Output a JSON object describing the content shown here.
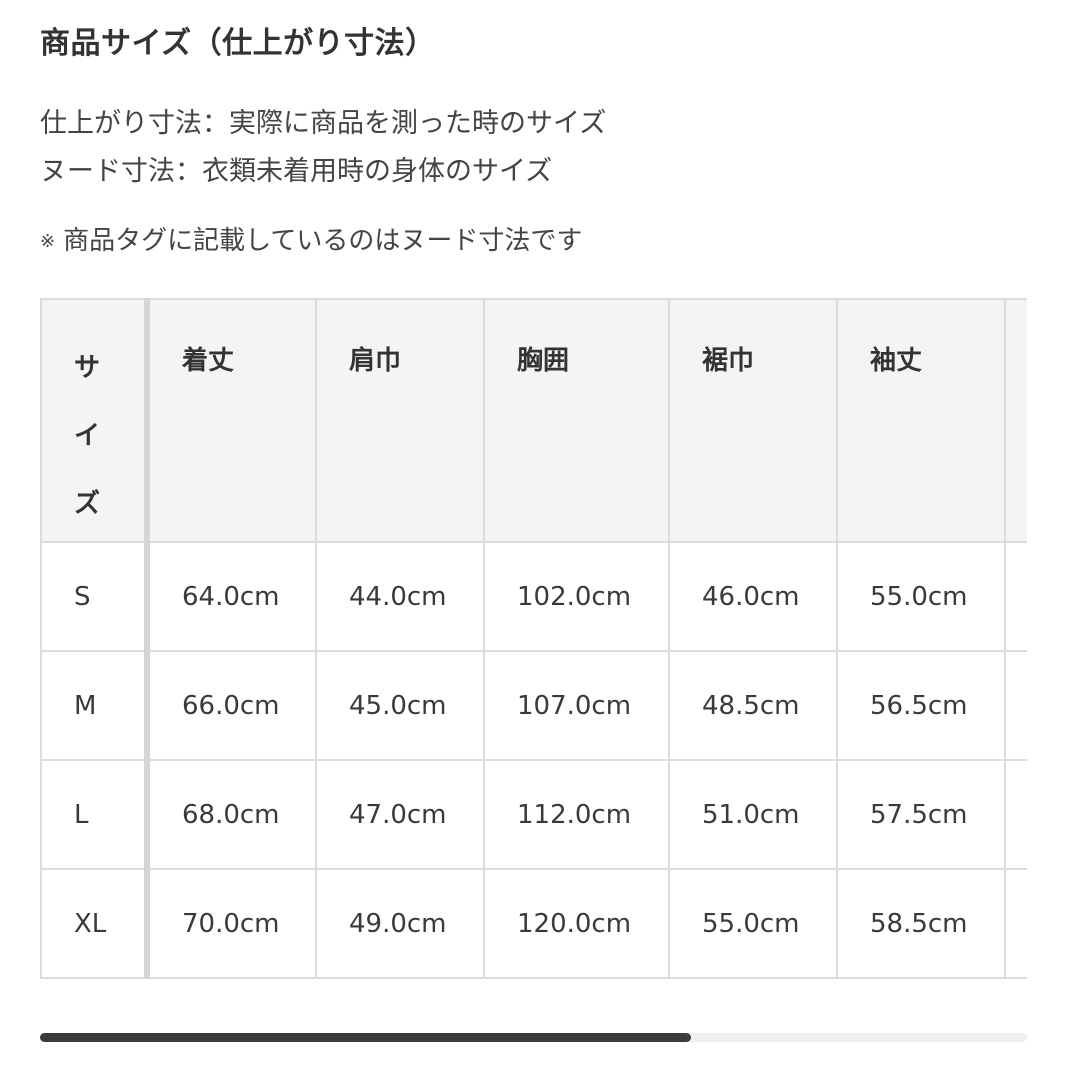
{
  "title": "商品サイズ（仕上がり寸法）",
  "descriptions": [
    "仕上がり寸法：実際に商品を測った時のサイズ",
    "ヌード寸法：衣類未着用時の身体のサイズ"
  ],
  "note": {
    "mark": "※",
    "text": "商品タグに記載しているのはヌード寸法です"
  },
  "table": {
    "headers": [
      "サイズ",
      "着丈",
      "肩巾",
      "胸囲",
      "裾巾",
      "袖丈"
    ],
    "rows": [
      [
        "S",
        "64.0cm",
        "44.0cm",
        "102.0cm",
        "46.0cm",
        "55.0cm"
      ],
      [
        "M",
        "66.0cm",
        "45.0cm",
        "107.0cm",
        "48.5cm",
        "56.5cm"
      ],
      [
        "L",
        "68.0cm",
        "47.0cm",
        "112.0cm",
        "51.0cm",
        "57.5cm"
      ],
      [
        "XL",
        "70.0cm",
        "49.0cm",
        "120.0cm",
        "55.0cm",
        "58.5cm"
      ]
    ]
  },
  "scrollbar": {
    "position_percent": 66,
    "thumb_color": "#3b3b3d",
    "track_color": "#f0f0f0"
  }
}
